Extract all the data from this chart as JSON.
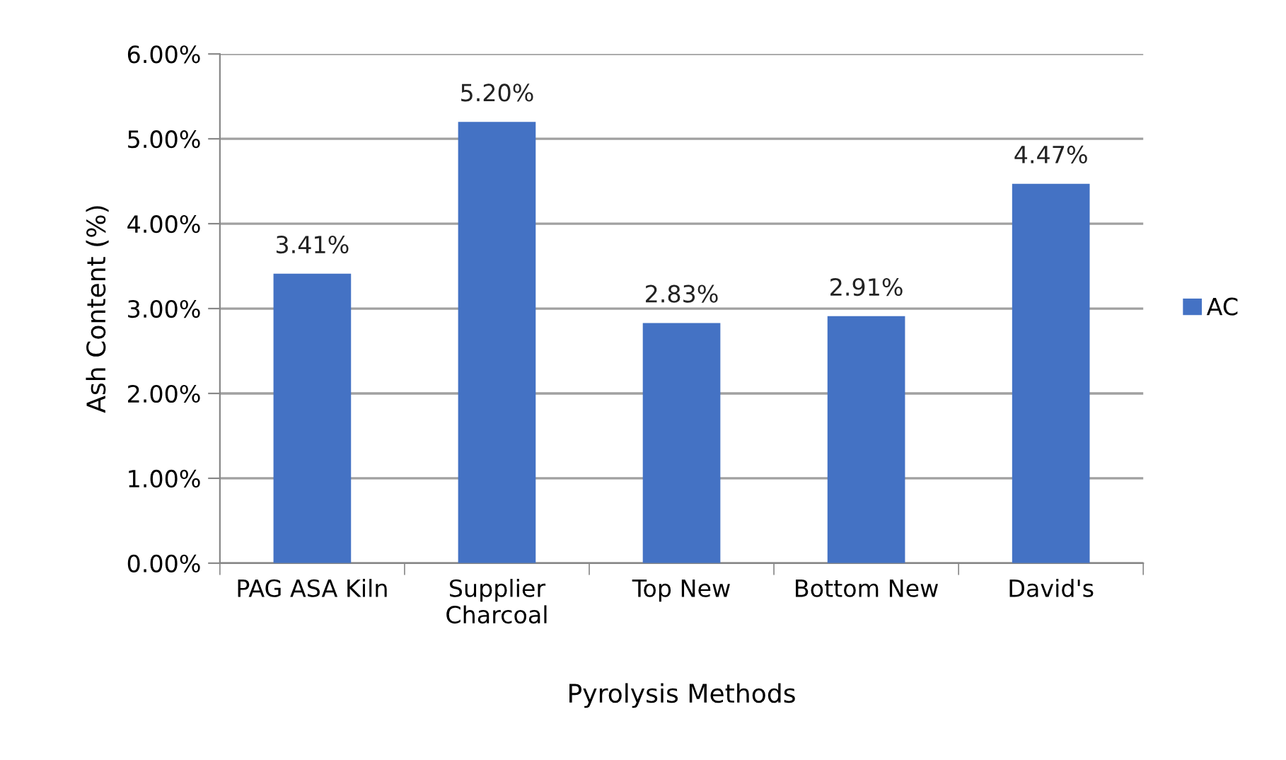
{
  "chart_data": {
    "type": "bar",
    "xlabel": "Pyrolysis Methods",
    "ylabel": "Ash Content (%)",
    "categories": [
      "PAG ASA Kiln",
      "Supplier\nCharcoal",
      "Top New",
      "Bottom New",
      "David's"
    ],
    "series": [
      {
        "name": "AC",
        "color": "#4472c4",
        "values": [
          3.41,
          5.2,
          2.83,
          2.91,
          4.47
        ],
        "value_labels": [
          "3.41%",
          "5.20%",
          "2.83%",
          "2.91%",
          "4.47%"
        ]
      }
    ],
    "ylim": [
      0,
      6
    ],
    "yticks": [
      {
        "value": 0,
        "label": "0.00%"
      },
      {
        "value": 1,
        "label": "1.00%"
      },
      {
        "value": 2,
        "label": "2.00%"
      },
      {
        "value": 3,
        "label": "3.00%"
      },
      {
        "value": 4,
        "label": "4.00%"
      },
      {
        "value": 5,
        "label": "5.00%"
      },
      {
        "value": 6,
        "label": "6.00%"
      }
    ],
    "grid": "y",
    "legend": "right"
  }
}
